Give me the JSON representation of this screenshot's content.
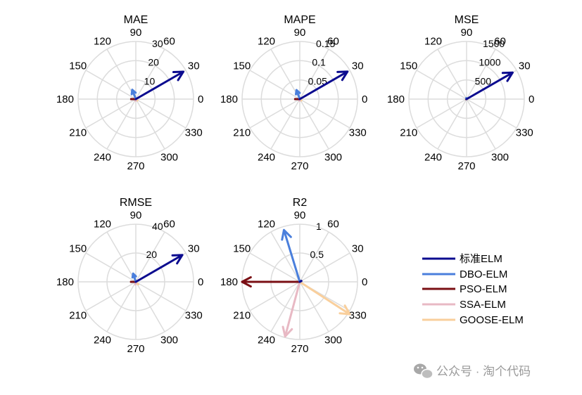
{
  "chart_data": {
    "type": "polar-compass",
    "angle_ticks": [
      "0",
      "30",
      "60",
      "90",
      "120",
      "150",
      "180",
      "210",
      "240",
      "270",
      "300",
      "330"
    ],
    "subplots": [
      {
        "title": "MAE",
        "rlim": [
          0,
          30
        ],
        "rticks": [
          "10",
          "20",
          "30"
        ],
        "arrows": [
          {
            "series": "标准ELM",
            "theta": 30,
            "r": 28.5
          },
          {
            "series": "DBO-ELM",
            "theta": 111,
            "r": 5.2
          },
          {
            "series": "PSO-ELM",
            "theta": 180,
            "r": 2.4
          },
          {
            "series": "SSA-ELM",
            "theta": 260,
            "r": 0.8
          },
          {
            "series": "GOOSE-ELM",
            "theta": 320,
            "r": 1.0
          }
        ]
      },
      {
        "title": "MAPE",
        "rlim": [
          0,
          0.15
        ],
        "rticks": [
          "0.05",
          "0.1",
          "0.15"
        ],
        "arrows": [
          {
            "series": "标准ELM",
            "theta": 30,
            "r": 0.143
          },
          {
            "series": "DBO-ELM",
            "theta": 110,
            "r": 0.025
          },
          {
            "series": "PSO-ELM",
            "theta": 180,
            "r": 0.012
          },
          {
            "series": "SSA-ELM",
            "theta": 260,
            "r": 0.004
          },
          {
            "series": "GOOSE-ELM",
            "theta": 320,
            "r": 0.005
          }
        ]
      },
      {
        "title": "MSE",
        "rlim": [
          0,
          1500
        ],
        "rticks": [
          "500",
          "1000",
          "1500"
        ],
        "arrows": [
          {
            "series": "标准ELM",
            "theta": 30,
            "r": 1380
          },
          {
            "series": "DBO-ELM",
            "theta": 110,
            "r": 25
          },
          {
            "series": "PSO-ELM",
            "theta": 180,
            "r": 10
          },
          {
            "series": "SSA-ELM",
            "theta": 260,
            "r": 3
          },
          {
            "series": "GOOSE-ELM",
            "theta": 320,
            "r": 4
          }
        ]
      },
      {
        "title": "RMSE",
        "rlim": [
          0,
          40
        ],
        "rticks": [
          "20",
          "40"
        ],
        "arrows": [
          {
            "series": "标准ELM",
            "theta": 30,
            "r": 37.2
          },
          {
            "series": "DBO-ELM",
            "theta": 108,
            "r": 6.0
          },
          {
            "series": "PSO-ELM",
            "theta": 180,
            "r": 3.3
          },
          {
            "series": "SSA-ELM",
            "theta": 262,
            "r": 1.8
          },
          {
            "series": "GOOSE-ELM",
            "theta": 315,
            "r": 2.3
          }
        ]
      },
      {
        "title": "R2",
        "rlim": [
          0,
          1
        ],
        "rticks": [
          "0.5",
          "1"
        ],
        "arrows": [
          {
            "series": "标准ELM",
            "theta": 30,
            "r": 0.03
          },
          {
            "series": "DBO-ELM",
            "theta": 107,
            "r": 0.94
          },
          {
            "series": "PSO-ELM",
            "theta": 180,
            "r": 1.0
          },
          {
            "series": "SSA-ELM",
            "theta": 255,
            "r": 0.98
          },
          {
            "series": "GOOSE-ELM",
            "theta": 327,
            "r": 1.03
          }
        ]
      }
    ],
    "legend": [
      {
        "label": "标准ELM",
        "color": "#0b0b8f"
      },
      {
        "label": "DBO-ELM",
        "color": "#4a7fdc"
      },
      {
        "label": "PSO-ELM",
        "color": "#7a0f14"
      },
      {
        "label": "SSA-ELM",
        "color": "#e8b9c4"
      },
      {
        "label": "GOOSE-ELM",
        "color": "#f9cf9c"
      }
    ],
    "legend_position": "right"
  },
  "watermark": "公众号 · 淘个代码",
  "grid_color": "#dcdcdc"
}
